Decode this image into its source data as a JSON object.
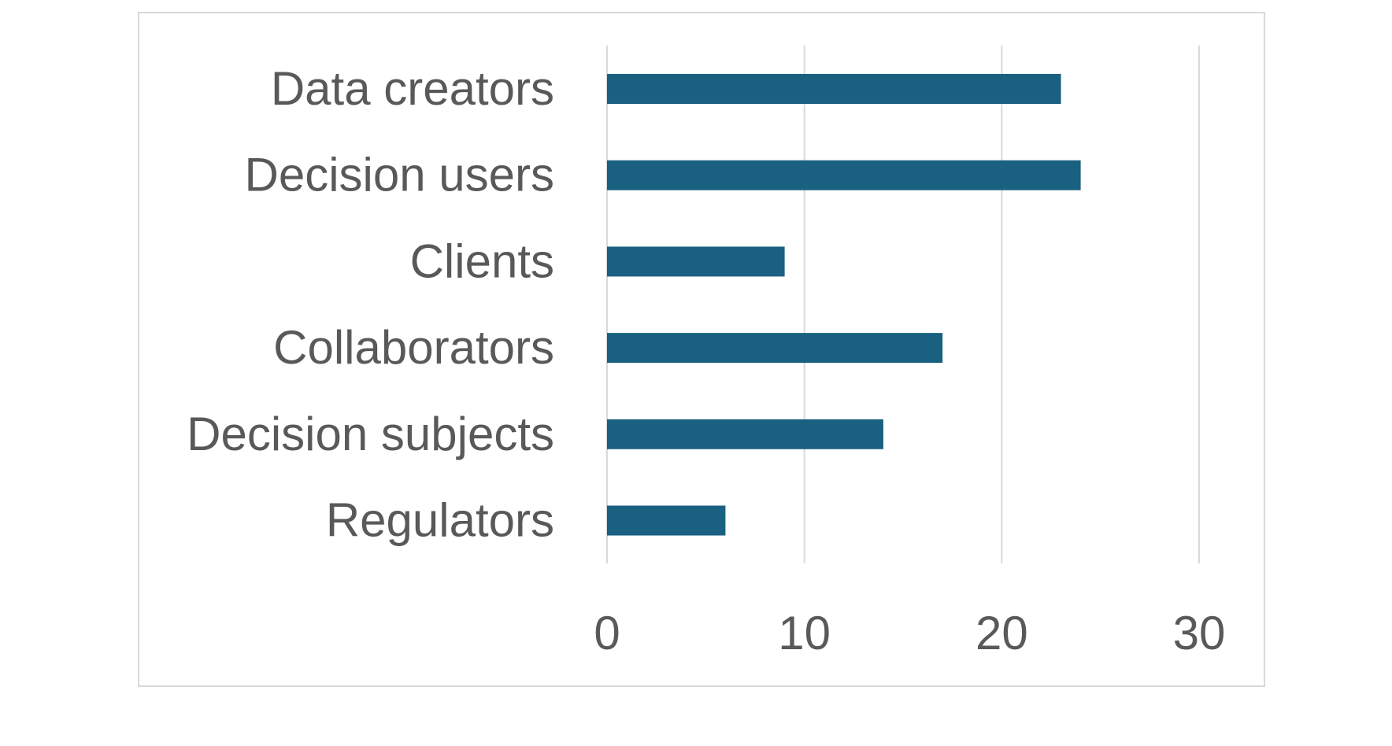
{
  "chart_data": {
    "type": "bar",
    "orientation": "horizontal",
    "categories": [
      "Data creators",
      "Decision users",
      "Clients",
      "Collaborators",
      "Decision subjects",
      "Regulators"
    ],
    "values": [
      23,
      24,
      9,
      17,
      14,
      6
    ],
    "title": "",
    "xlabel": "",
    "ylabel": "",
    "xlim": [
      0,
      30
    ],
    "x_ticks": [
      0,
      10,
      20,
      30
    ],
    "grid": true,
    "legend": "none",
    "bar_color": "#1a6080",
    "text_color": "#595959",
    "grid_color": "#d9d9d9"
  }
}
